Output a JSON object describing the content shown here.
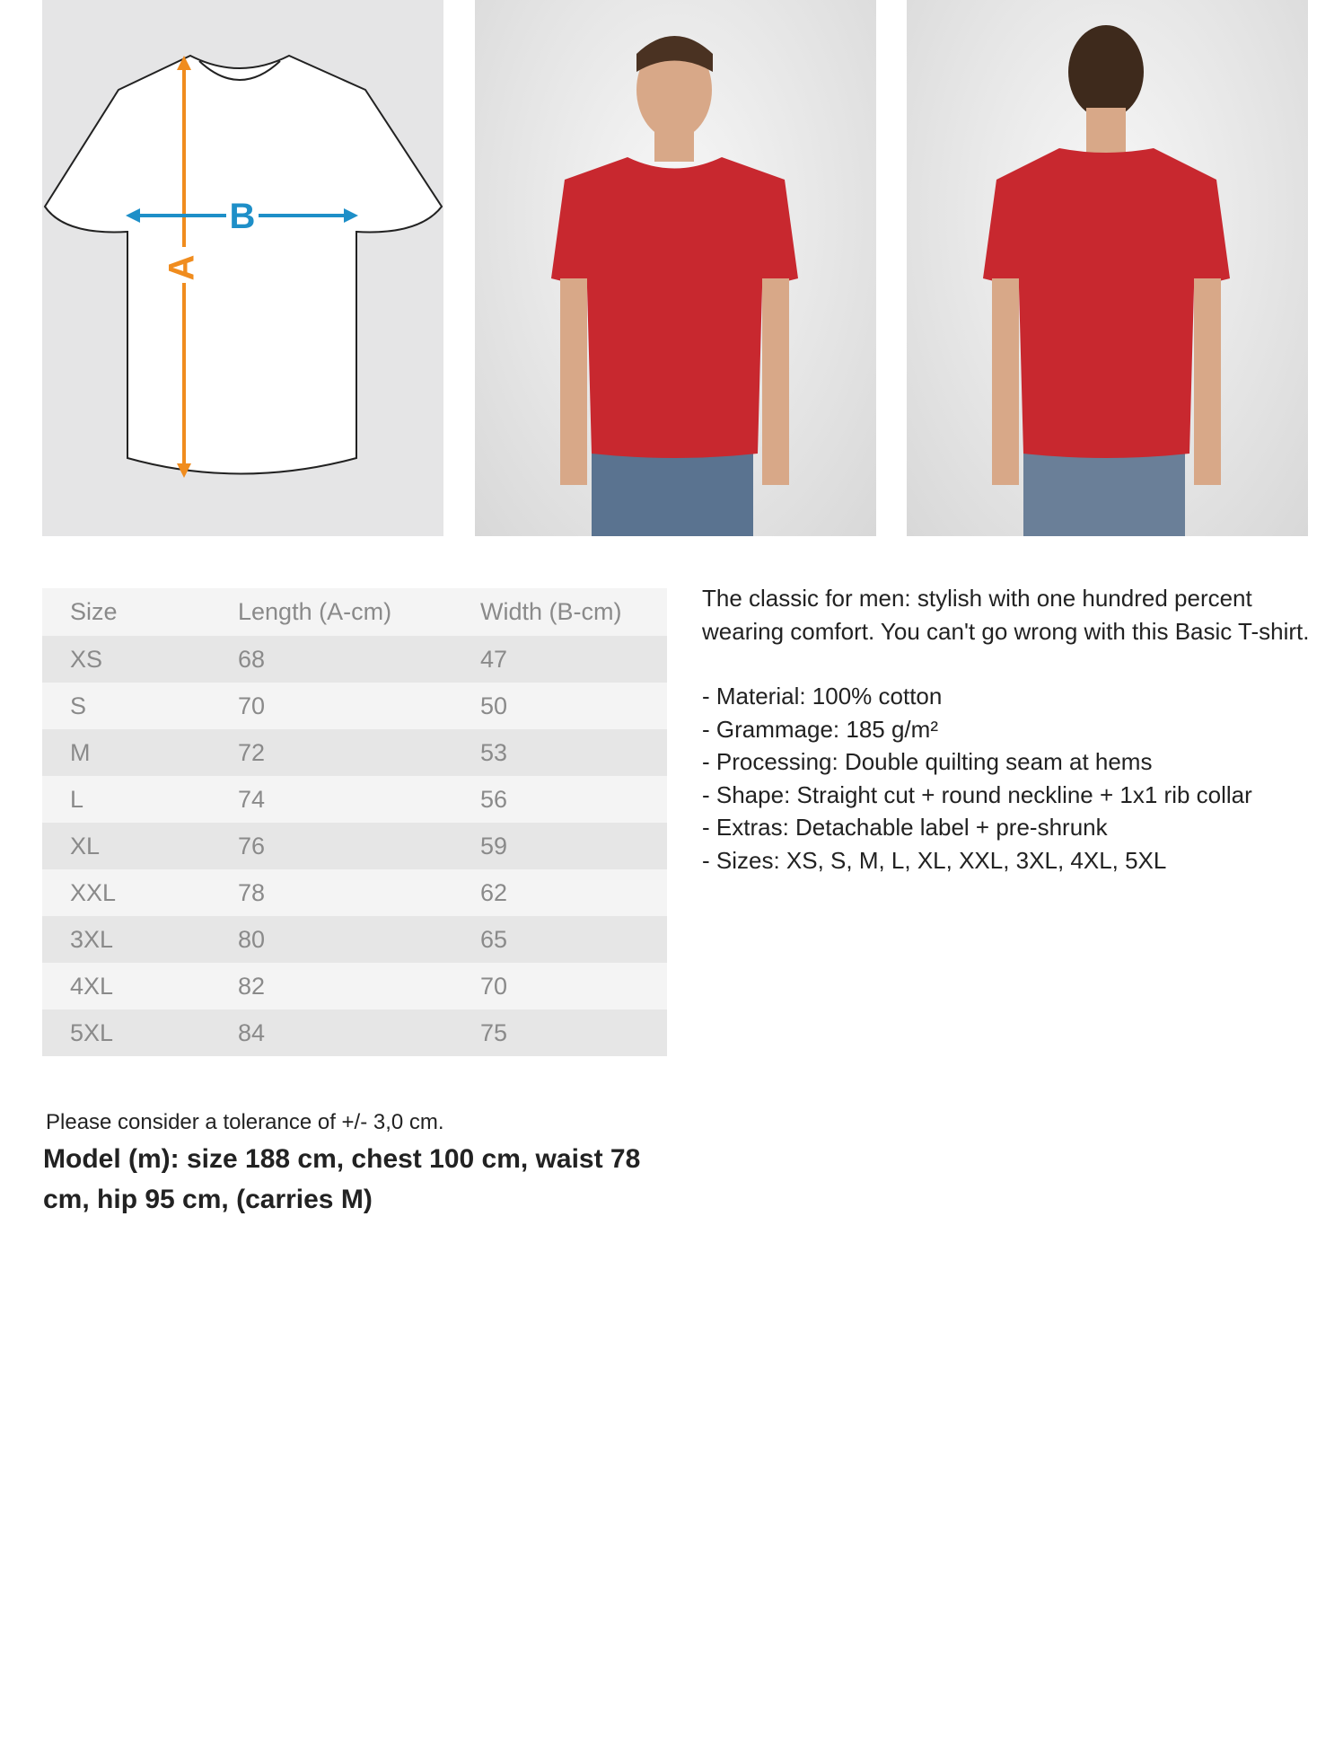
{
  "diagram": {
    "label_a": "A",
    "label_b": "B",
    "colors": {
      "length_arrow": "#f08c1e",
      "width_arrow": "#1e8fc8"
    }
  },
  "photos": [
    {
      "name": "model-front"
    },
    {
      "name": "model-back"
    }
  ],
  "shirt_color": "#c8282f",
  "size_table": {
    "headers": [
      "Size",
      "Length (A-cm)",
      "Width (B-cm)"
    ],
    "rows": [
      [
        "XS",
        "68",
        "47"
      ],
      [
        "S",
        "70",
        "50"
      ],
      [
        "M",
        "72",
        "53"
      ],
      [
        "L",
        "74",
        "56"
      ],
      [
        "XL",
        "76",
        "59"
      ],
      [
        "XXL",
        "78",
        "62"
      ],
      [
        "3XL",
        "80",
        "65"
      ],
      [
        "4XL",
        "82",
        "70"
      ],
      [
        "5XL",
        "84",
        "75"
      ]
    ]
  },
  "description": {
    "intro": "The classic for men: stylish with one hundred percent wearing comfort. You can't go wrong with this Basic T-shirt.",
    "features": [
      "- Material: 100% cotton",
      "- Grammage: 185 g/m²",
      "- Processing: Double quilting seam at hems",
      "- Shape: Straight cut + round neckline + 1x1 rib collar",
      "- Extras: Detachable label + pre-shrunk",
      "- Sizes:  XS, S, M, L, XL, XXL, 3XL, 4XL, 5XL"
    ]
  },
  "tolerance": "Please consider a tolerance of +/- 3,0 cm.",
  "model_info": "Model (m): size 188 cm, chest 100 cm, waist 78 cm, hip 95 cm, (carries M)"
}
